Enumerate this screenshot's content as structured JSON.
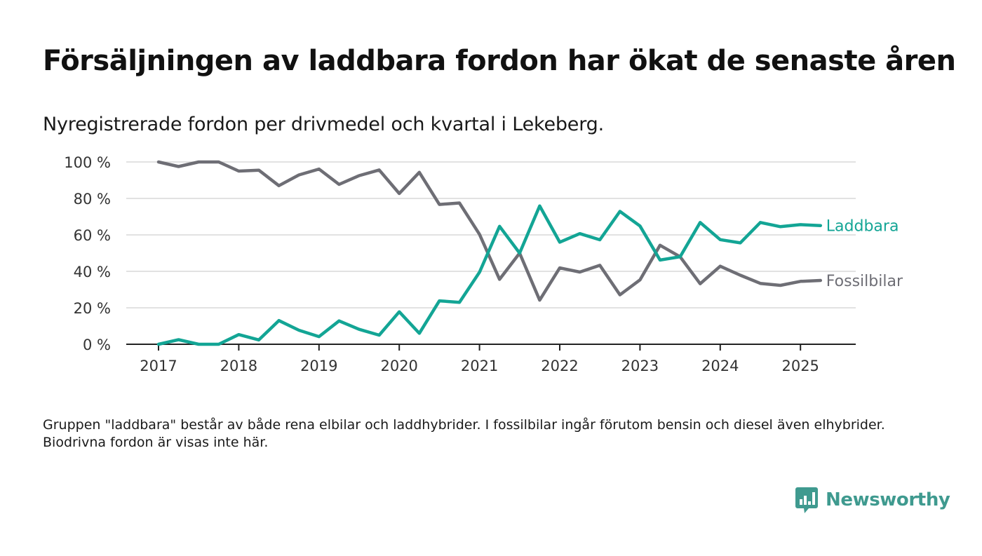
{
  "title": "Försäljningen av laddbara fordon har ökat de senaste åren",
  "subtitle": "Nyregistrerade fordon per drivmedel och kvartal i Lekeberg.",
  "footnote": "Gruppen \"laddbara\" består av både rena elbilar och laddhybrider. I fossilbilar ingår förutom bensin och diesel även elhybrider. Biodrivna fordon är visas inte här.",
  "brand": {
    "name": "Newsworthy",
    "color": "#3f9a8f"
  },
  "chart_data": {
    "type": "line",
    "x": [
      "2017-Q1",
      "2017-Q2",
      "2017-Q3",
      "2017-Q4",
      "2018-Q1",
      "2018-Q2",
      "2018-Q3",
      "2018-Q4",
      "2019-Q1",
      "2019-Q2",
      "2019-Q3",
      "2019-Q4",
      "2020-Q1",
      "2020-Q2",
      "2020-Q3",
      "2020-Q4",
      "2021-Q1",
      "2021-Q2",
      "2021-Q3",
      "2021-Q4",
      "2022-Q1",
      "2022-Q2",
      "2022-Q3",
      "2022-Q4",
      "2023-Q1",
      "2023-Q2",
      "2023-Q3",
      "2023-Q4",
      "2024-Q1",
      "2024-Q2",
      "2024-Q3",
      "2024-Q4",
      "2025-Q1",
      "2025-Q2"
    ],
    "x_ticks": [
      "2017",
      "2018",
      "2019",
      "2020",
      "2021",
      "2022",
      "2023",
      "2024",
      "2025"
    ],
    "y_ticks": [
      "0 %",
      "20 %",
      "40 %",
      "60 %",
      "80 %",
      "100 %"
    ],
    "ylim": [
      0,
      100
    ],
    "grid": true,
    "series": [
      {
        "name": "Laddbara",
        "color": "#13a595",
        "values": [
          0,
          2.5,
          0,
          0,
          5.3,
          2.4,
          13,
          7.7,
          4.2,
          12.8,
          8.2,
          5,
          17.8,
          6,
          23.8,
          23,
          39.5,
          64.7,
          50,
          75.9,
          56,
          60.7,
          57.3,
          72.9,
          64.9,
          46.2,
          48,
          66.8,
          57.4,
          55.6,
          66.8,
          64.5,
          65.6,
          65.1
        ]
      },
      {
        "name": "Fossilbilar",
        "color": "#6e6e75",
        "values": [
          100,
          97.5,
          100,
          100,
          95,
          95.5,
          87,
          92.9,
          96.1,
          87.7,
          92.5,
          95.6,
          82.7,
          94.3,
          76.7,
          77.5,
          60.3,
          35.6,
          50,
          24.2,
          41.9,
          39.6,
          43.3,
          27.1,
          35.3,
          54.3,
          48,
          33.2,
          42.8,
          37.9,
          33.4,
          32.3,
          34.5,
          35
        ]
      }
    ]
  }
}
